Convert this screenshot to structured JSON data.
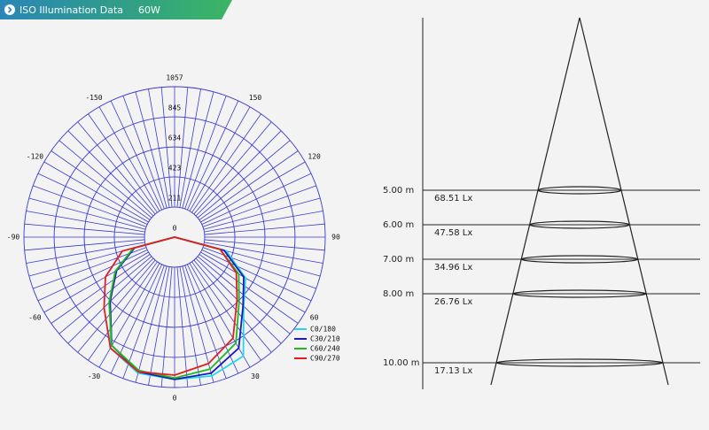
{
  "header": {
    "title": "ISO Illumination Data",
    "power": "60W"
  },
  "chart_data": {
    "type": "polar",
    "angles": [
      -90,
      -75,
      -60,
      -45,
      -30,
      -15,
      0,
      15,
      30,
      45,
      60,
      75,
      90
    ],
    "rlim": [
      0,
      1057
    ],
    "rticks": [
      0,
      211,
      423,
      634,
      845,
      1057
    ],
    "angle_ticks": [
      0,
      30,
      60,
      90,
      120,
      150,
      -30,
      -60,
      -90,
      -120,
      -150
    ],
    "grid": true,
    "legend": "lower right",
    "series": [
      {
        "name": "C0/180",
        "color": "#22d8e8",
        "values": [
          0,
          300,
          480,
          640,
          900,
          990,
          1000,
          1010,
          965,
          685,
          575,
          375,
          0
        ]
      },
      {
        "name": "C30/210",
        "color": "#1a1ab8",
        "values": [
          0,
          290,
          470,
          640,
          880,
          980,
          1000,
          990,
          900,
          680,
          560,
          360,
          0
        ]
      },
      {
        "name": "C60/240",
        "color": "#22b822",
        "values": [
          0,
          300,
          480,
          650,
          880,
          970,
          990,
          960,
          860,
          640,
          520,
          330,
          0
        ]
      },
      {
        "name": "C90/270",
        "color": "#e02020",
        "values": [
          0,
          380,
          560,
          700,
          900,
          980,
          970,
          920,
          820,
          620,
          500,
          330,
          0
        ]
      }
    ]
  },
  "cone": {
    "levels": [
      {
        "distance": 5,
        "distance_label": "5.00 m",
        "illuminance_label": "68.51 Lx"
      },
      {
        "distance": 6,
        "distance_label": "6.00 m",
        "illuminance_label": "47.58 Lx"
      },
      {
        "distance": 7,
        "distance_label": "7.00 m",
        "illuminance_label": "34.96 Lx"
      },
      {
        "distance": 8,
        "distance_label": "8.00 m",
        "illuminance_label": "26.76 Lx"
      },
      {
        "distance": 10,
        "distance_label": "10.00 m",
        "illuminance_label": "17.13 Lx"
      }
    ]
  }
}
